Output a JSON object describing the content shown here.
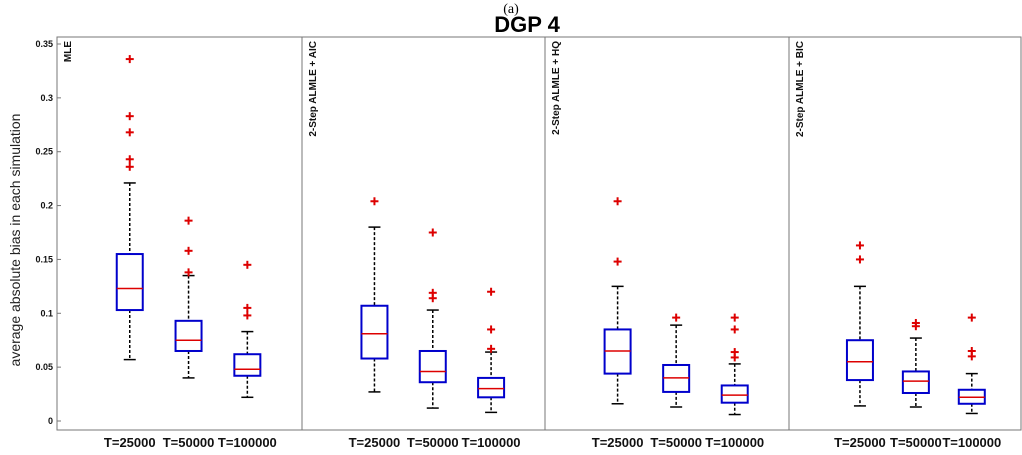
{
  "header": {
    "supertitle": "(a)",
    "title": "DGP 4"
  },
  "chart_data": {
    "type": "box",
    "ylabel": "average absolute bias in each simulation",
    "ylim": [
      -0.01,
      0.35
    ],
    "yticks": [
      {
        "value": 0,
        "label": "0"
      },
      {
        "value": 0.05,
        "label": "0.05"
      },
      {
        "value": 0.1,
        "label": "0.1"
      },
      {
        "value": 0.15,
        "label": "0.15"
      },
      {
        "value": 0.2,
        "label": "0.2"
      },
      {
        "value": 0.25,
        "label": "0.25"
      },
      {
        "value": 0.3,
        "label": "0.3"
      },
      {
        "value": 0.35,
        "label": "0.35"
      }
    ],
    "categories": [
      "T=25000",
      "T=50000",
      "T=100000"
    ],
    "colors": {
      "box": "#0000cc",
      "median": "#dd0000",
      "whisker": "#000000",
      "outlier": "#dd0000",
      "frame": "#777777"
    },
    "panels": [
      {
        "label": "MLE",
        "boxes": [
          {
            "q1": 0.103,
            "median": 0.123,
            "q3": 0.155,
            "low": 0.057,
            "high": 0.221,
            "outliers": [
              0.236,
              0.243,
              0.268,
              0.283,
              0.336
            ]
          },
          {
            "q1": 0.065,
            "median": 0.075,
            "q3": 0.093,
            "low": 0.04,
            "high": 0.135,
            "outliers": [
              0.138,
              0.158,
              0.186
            ]
          },
          {
            "q1": 0.042,
            "median": 0.048,
            "q3": 0.062,
            "low": 0.022,
            "high": 0.083,
            "outliers": [
              0.098,
              0.105,
              0.145
            ]
          }
        ]
      },
      {
        "label": "2-Step ALMLE + AIC",
        "boxes": [
          {
            "q1": 0.058,
            "median": 0.081,
            "q3": 0.107,
            "low": 0.027,
            "high": 0.18,
            "outliers": [
              0.204
            ]
          },
          {
            "q1": 0.036,
            "median": 0.046,
            "q3": 0.065,
            "low": 0.012,
            "high": 0.103,
            "outliers": [
              0.114,
              0.119,
              0.175
            ]
          },
          {
            "q1": 0.022,
            "median": 0.03,
            "q3": 0.04,
            "low": 0.008,
            "high": 0.064,
            "outliers": [
              0.067,
              0.085,
              0.12
            ]
          }
        ]
      },
      {
        "label": "2-Step ALMLE + HQ",
        "boxes": [
          {
            "q1": 0.044,
            "median": 0.065,
            "q3": 0.085,
            "low": 0.016,
            "high": 0.125,
            "outliers": [
              0.148,
              0.204
            ]
          },
          {
            "q1": 0.027,
            "median": 0.04,
            "q3": 0.052,
            "low": 0.013,
            "high": 0.089,
            "outliers": [
              0.096
            ]
          },
          {
            "q1": 0.017,
            "median": 0.024,
            "q3": 0.033,
            "low": 0.006,
            "high": 0.053,
            "outliers": [
              0.059,
              0.064,
              0.085,
              0.096
            ]
          }
        ]
      },
      {
        "label": "2-Step ALMLE + BIC",
        "boxes": [
          {
            "q1": 0.038,
            "median": 0.055,
            "q3": 0.075,
            "low": 0.014,
            "high": 0.125,
            "outliers": [
              0.15,
              0.163
            ]
          },
          {
            "q1": 0.026,
            "median": 0.037,
            "q3": 0.046,
            "low": 0.013,
            "high": 0.077,
            "outliers": [
              0.088,
              0.091
            ]
          },
          {
            "q1": 0.016,
            "median": 0.022,
            "q3": 0.029,
            "low": 0.007,
            "high": 0.044,
            "outliers": [
              0.06,
              0.065,
              0.096
            ]
          }
        ]
      }
    ]
  }
}
